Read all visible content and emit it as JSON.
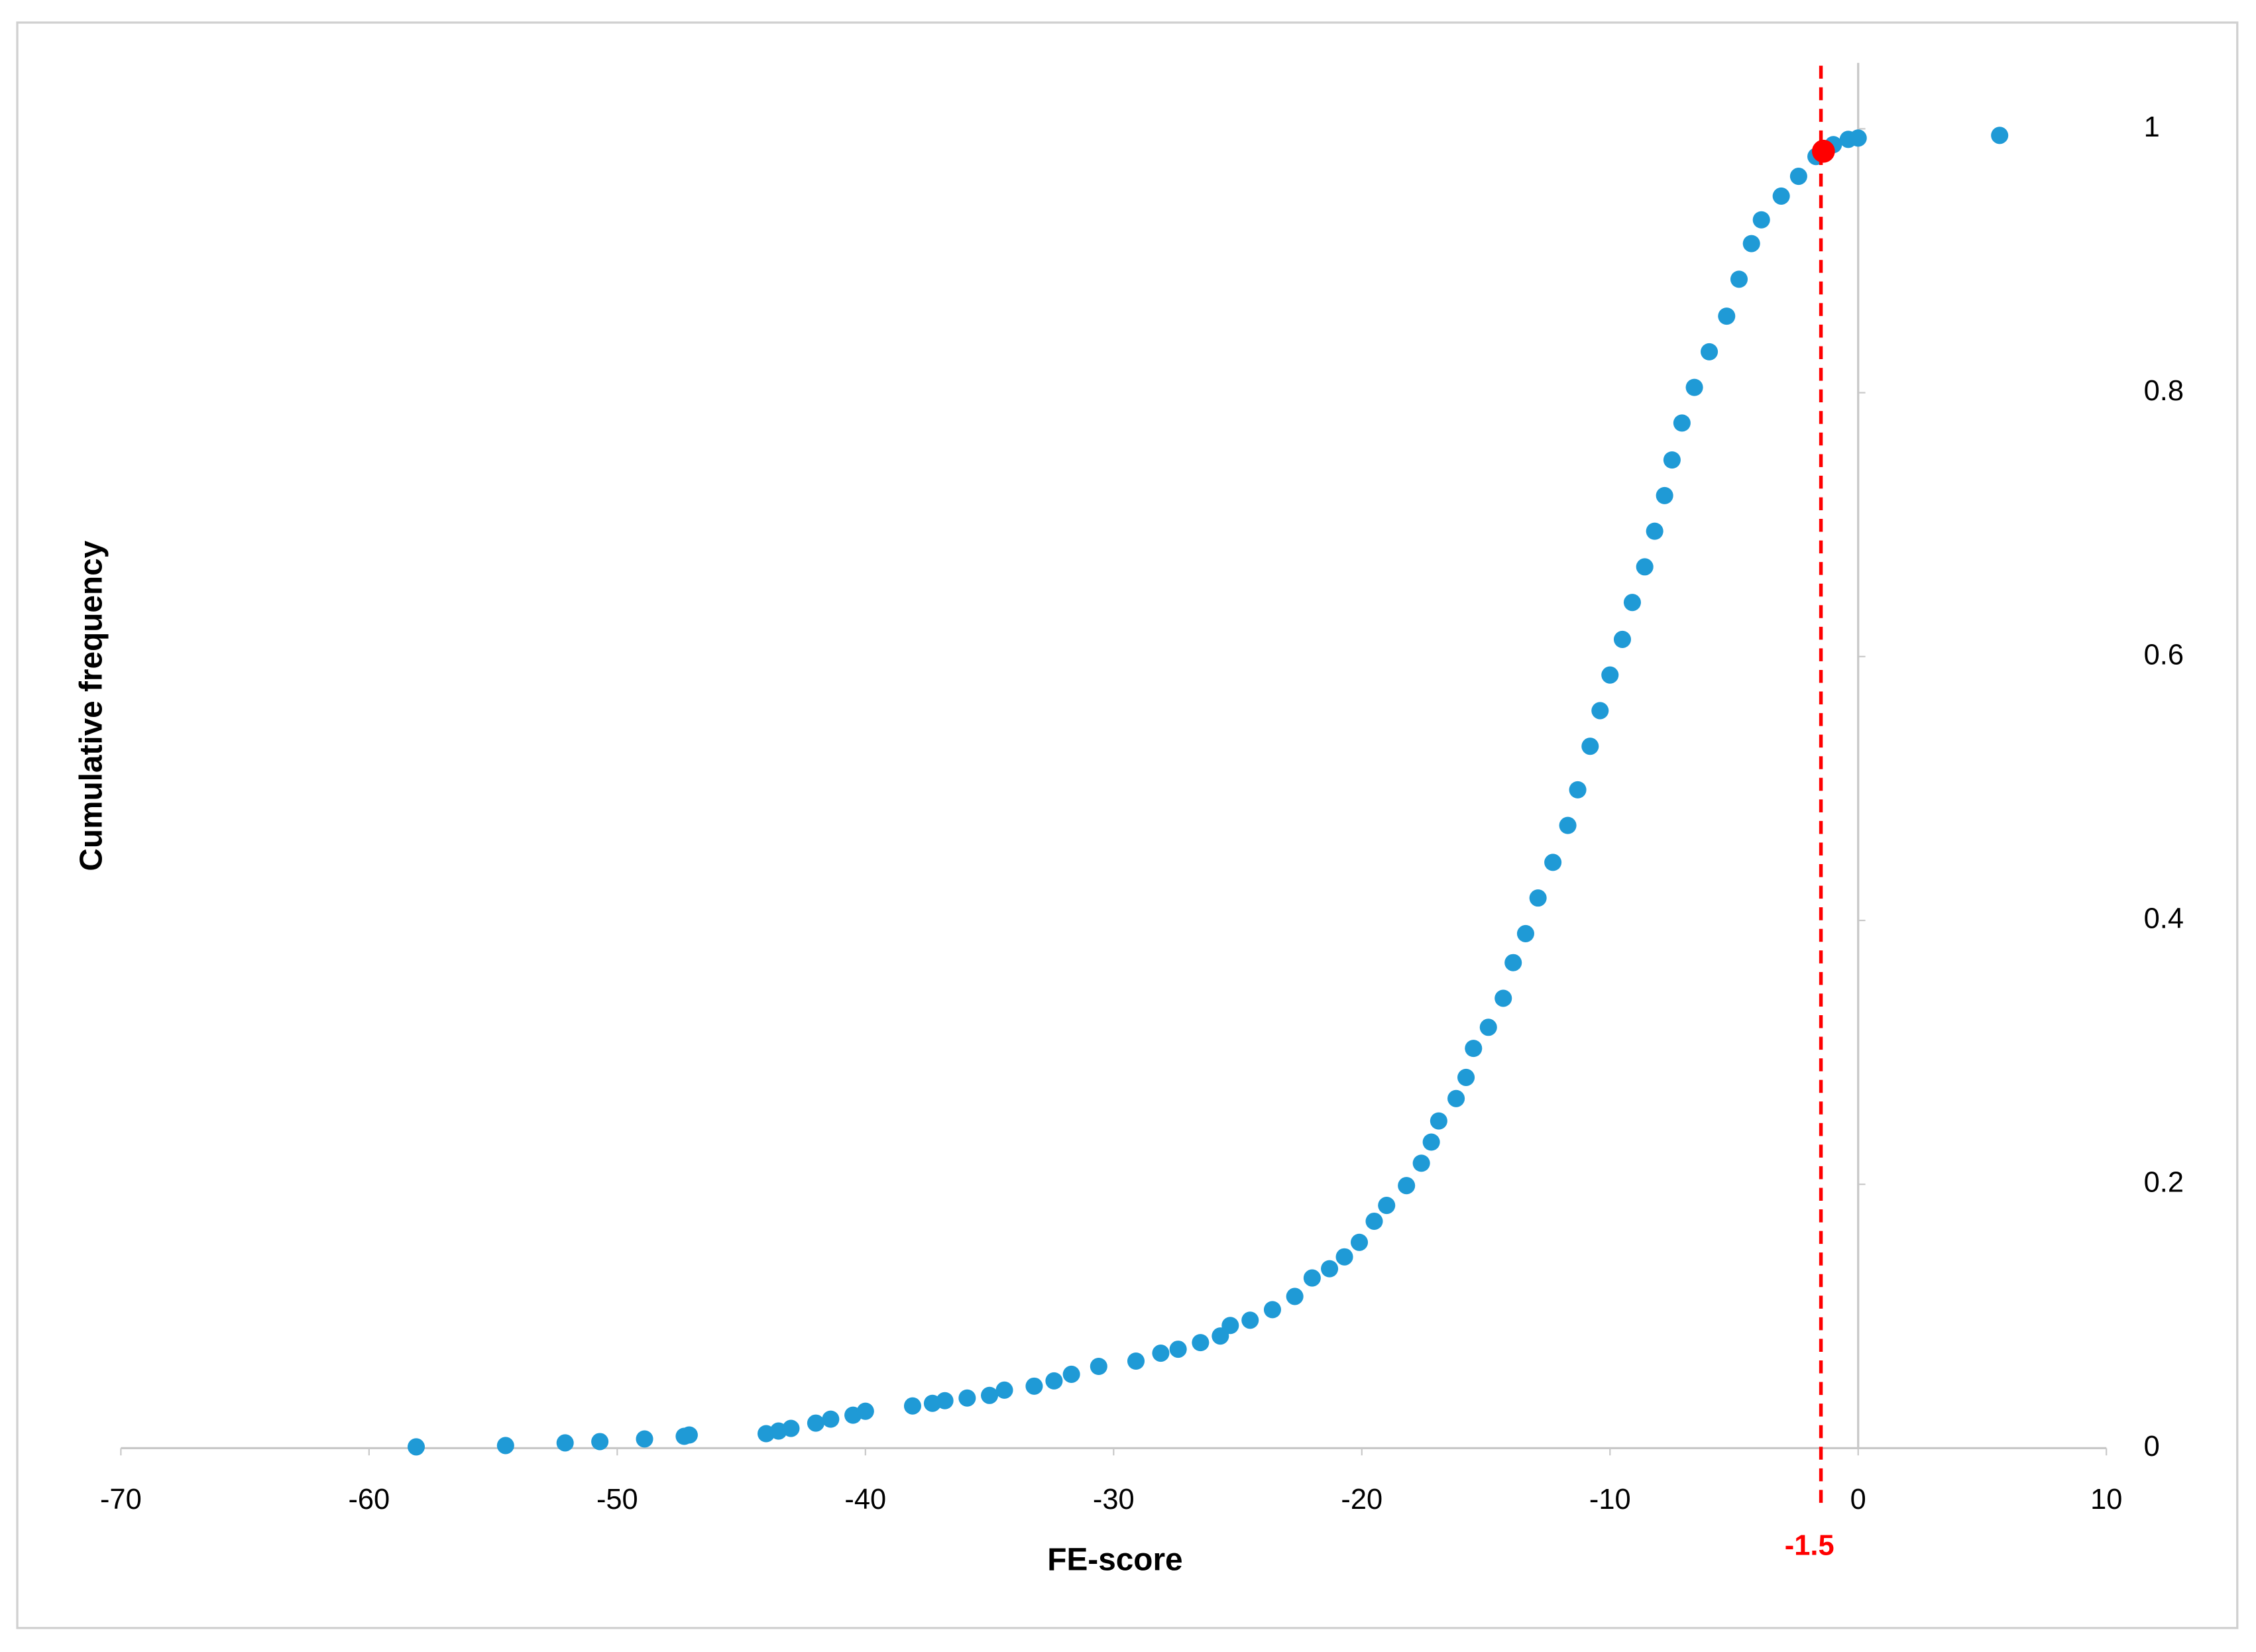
{
  "chart_data": {
    "type": "scatter",
    "x_label": "FE-score",
    "y_label": "Cumulative frequency",
    "xlim": [
      -70,
      10
    ],
    "xticks": [
      -70,
      -60,
      -50,
      -40,
      -30,
      -20,
      -10,
      0,
      10
    ],
    "ylim": [
      0,
      1.05
    ],
    "yticks": [
      0,
      0.2,
      0.4,
      0.6,
      0.8,
      1
    ],
    "series": [
      {
        "color": "#1f9ad6",
        "x": [
          -58.1,
          -54.5,
          -52.1,
          -50.7,
          -48.9,
          -47.3,
          -47.1,
          -44.0,
          -43.5,
          -43.0,
          -42.0,
          -41.4,
          -40.5,
          -40.0,
          -38.1,
          -37.3,
          -36.8,
          -35.9,
          -35.0,
          -34.4,
          -33.2,
          -32.4,
          -31.7,
          -30.6,
          -29.1,
          -28.1,
          -27.4,
          -26.5,
          -25.7,
          -25.3,
          -24.5,
          -23.6,
          -22.7,
          -22.0,
          -21.3,
          -20.7,
          -20.1,
          -19.5,
          -19.0,
          -18.2,
          -17.6,
          -17.2,
          -16.9,
          -16.2,
          -15.8,
          -15.5,
          -14.9,
          -14.3,
          -13.9,
          -13.4,
          -12.9,
          -12.3,
          -11.7,
          -11.3,
          -10.8,
          -10.4,
          -10.0,
          -9.5,
          -9.1,
          -8.6,
          -8.2,
          -7.8,
          -7.5,
          -7.1,
          -6.6,
          -6.0,
          -5.3,
          -4.8,
          -4.3,
          -3.9,
          -3.1,
          -2.4,
          -1.7,
          -1.0,
          -0.4,
          0.0,
          5.7
        ],
        "values": [
          0.001,
          0.002,
          0.004,
          0.005,
          0.007,
          0.009,
          0.01,
          0.011,
          0.013,
          0.015,
          0.019,
          0.022,
          0.025,
          0.028,
          0.032,
          0.034,
          0.036,
          0.038,
          0.04,
          0.044,
          0.047,
          0.051,
          0.056,
          0.062,
          0.066,
          0.072,
          0.075,
          0.08,
          0.085,
          0.093,
          0.097,
          0.105,
          0.115,
          0.129,
          0.136,
          0.145,
          0.156,
          0.172,
          0.184,
          0.199,
          0.216,
          0.232,
          0.248,
          0.265,
          0.281,
          0.303,
          0.319,
          0.341,
          0.368,
          0.39,
          0.417,
          0.444,
          0.472,
          0.499,
          0.532,
          0.559,
          0.586,
          0.613,
          0.641,
          0.668,
          0.695,
          0.722,
          0.749,
          0.777,
          0.804,
          0.831,
          0.858,
          0.886,
          0.913,
          0.931,
          0.949,
          0.964,
          0.979,
          0.988,
          0.992,
          0.993,
          0.995
        ]
      }
    ],
    "highlight": {
      "x": -1.4,
      "y": 0.983,
      "color": "#ff0000"
    },
    "threshold": -1.5,
    "threshold_color": "#ff0000"
  }
}
